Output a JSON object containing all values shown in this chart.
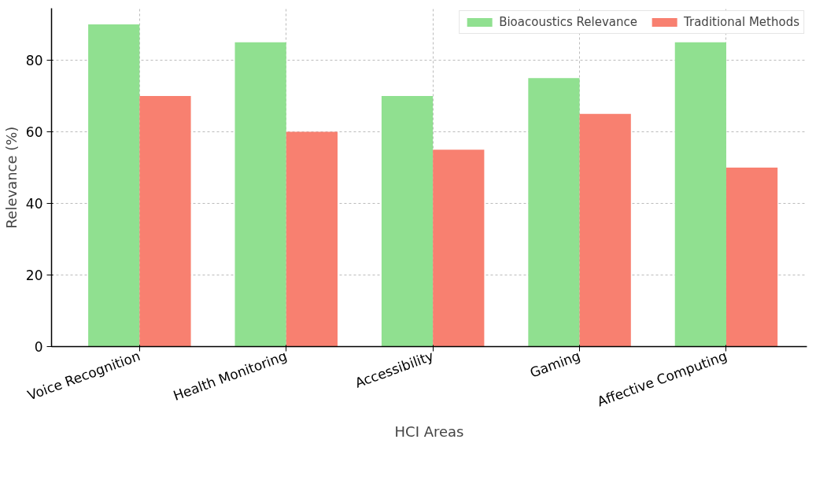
{
  "chart_data": {
    "type": "bar",
    "xlabel": "HCI Areas",
    "ylabel": "Relevance (%)",
    "categories": [
      "Voice Recognition",
      "Health Monitoring",
      "Accessibility",
      "Gaming",
      "Affective Computing"
    ],
    "series": [
      {
        "name": "Bioacoustics Relevance",
        "color": "#90e090",
        "values": [
          90,
          85,
          70,
          75,
          85
        ]
      },
      {
        "name": "Traditional Methods",
        "color": "#f88070",
        "values": [
          70,
          60,
          55,
          65,
          50
        ]
      }
    ],
    "ylim": [
      0,
      94.5
    ],
    "yticks": [
      0,
      20,
      40,
      60,
      80
    ],
    "grid": true,
    "legend": "top right"
  }
}
